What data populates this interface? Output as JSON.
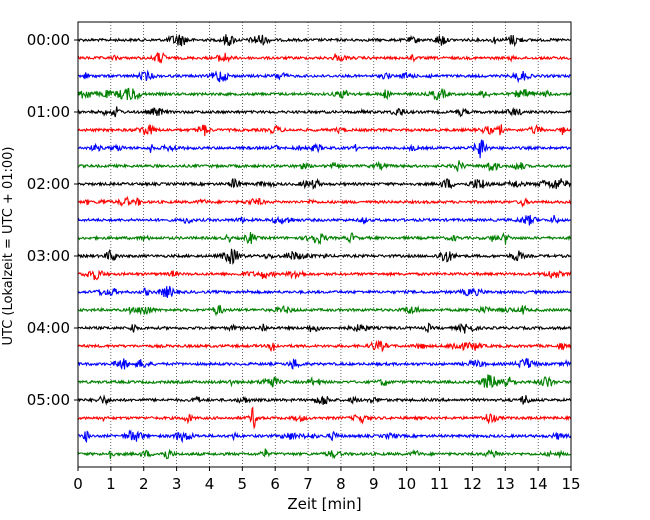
{
  "chart_data": {
    "type": "line",
    "title": "",
    "xlabel": "Zeit  [min]",
    "ylabel": "UTC (Lokalzeit = UTC + 01:00)",
    "xlim": [
      0,
      15
    ],
    "xticks": [
      0,
      1,
      2,
      3,
      4,
      5,
      6,
      7,
      8,
      9,
      10,
      11,
      12,
      13,
      14,
      15
    ],
    "x_grid": "dotted vertical lines at each minute",
    "trace_interval_min": 15,
    "trace_start": "00:00",
    "trace_end": "05:45",
    "trace_count": 24,
    "ytick_labels": [
      "00:00",
      "01:00",
      "02:00",
      "03:00",
      "04:00",
      "05:00"
    ],
    "ytick_trace_index": [
      0,
      4,
      8,
      12,
      16,
      20
    ],
    "color_cycle": [
      "#000000",
      "#ff0000",
      "#0000ff",
      "#008000"
    ]
  }
}
